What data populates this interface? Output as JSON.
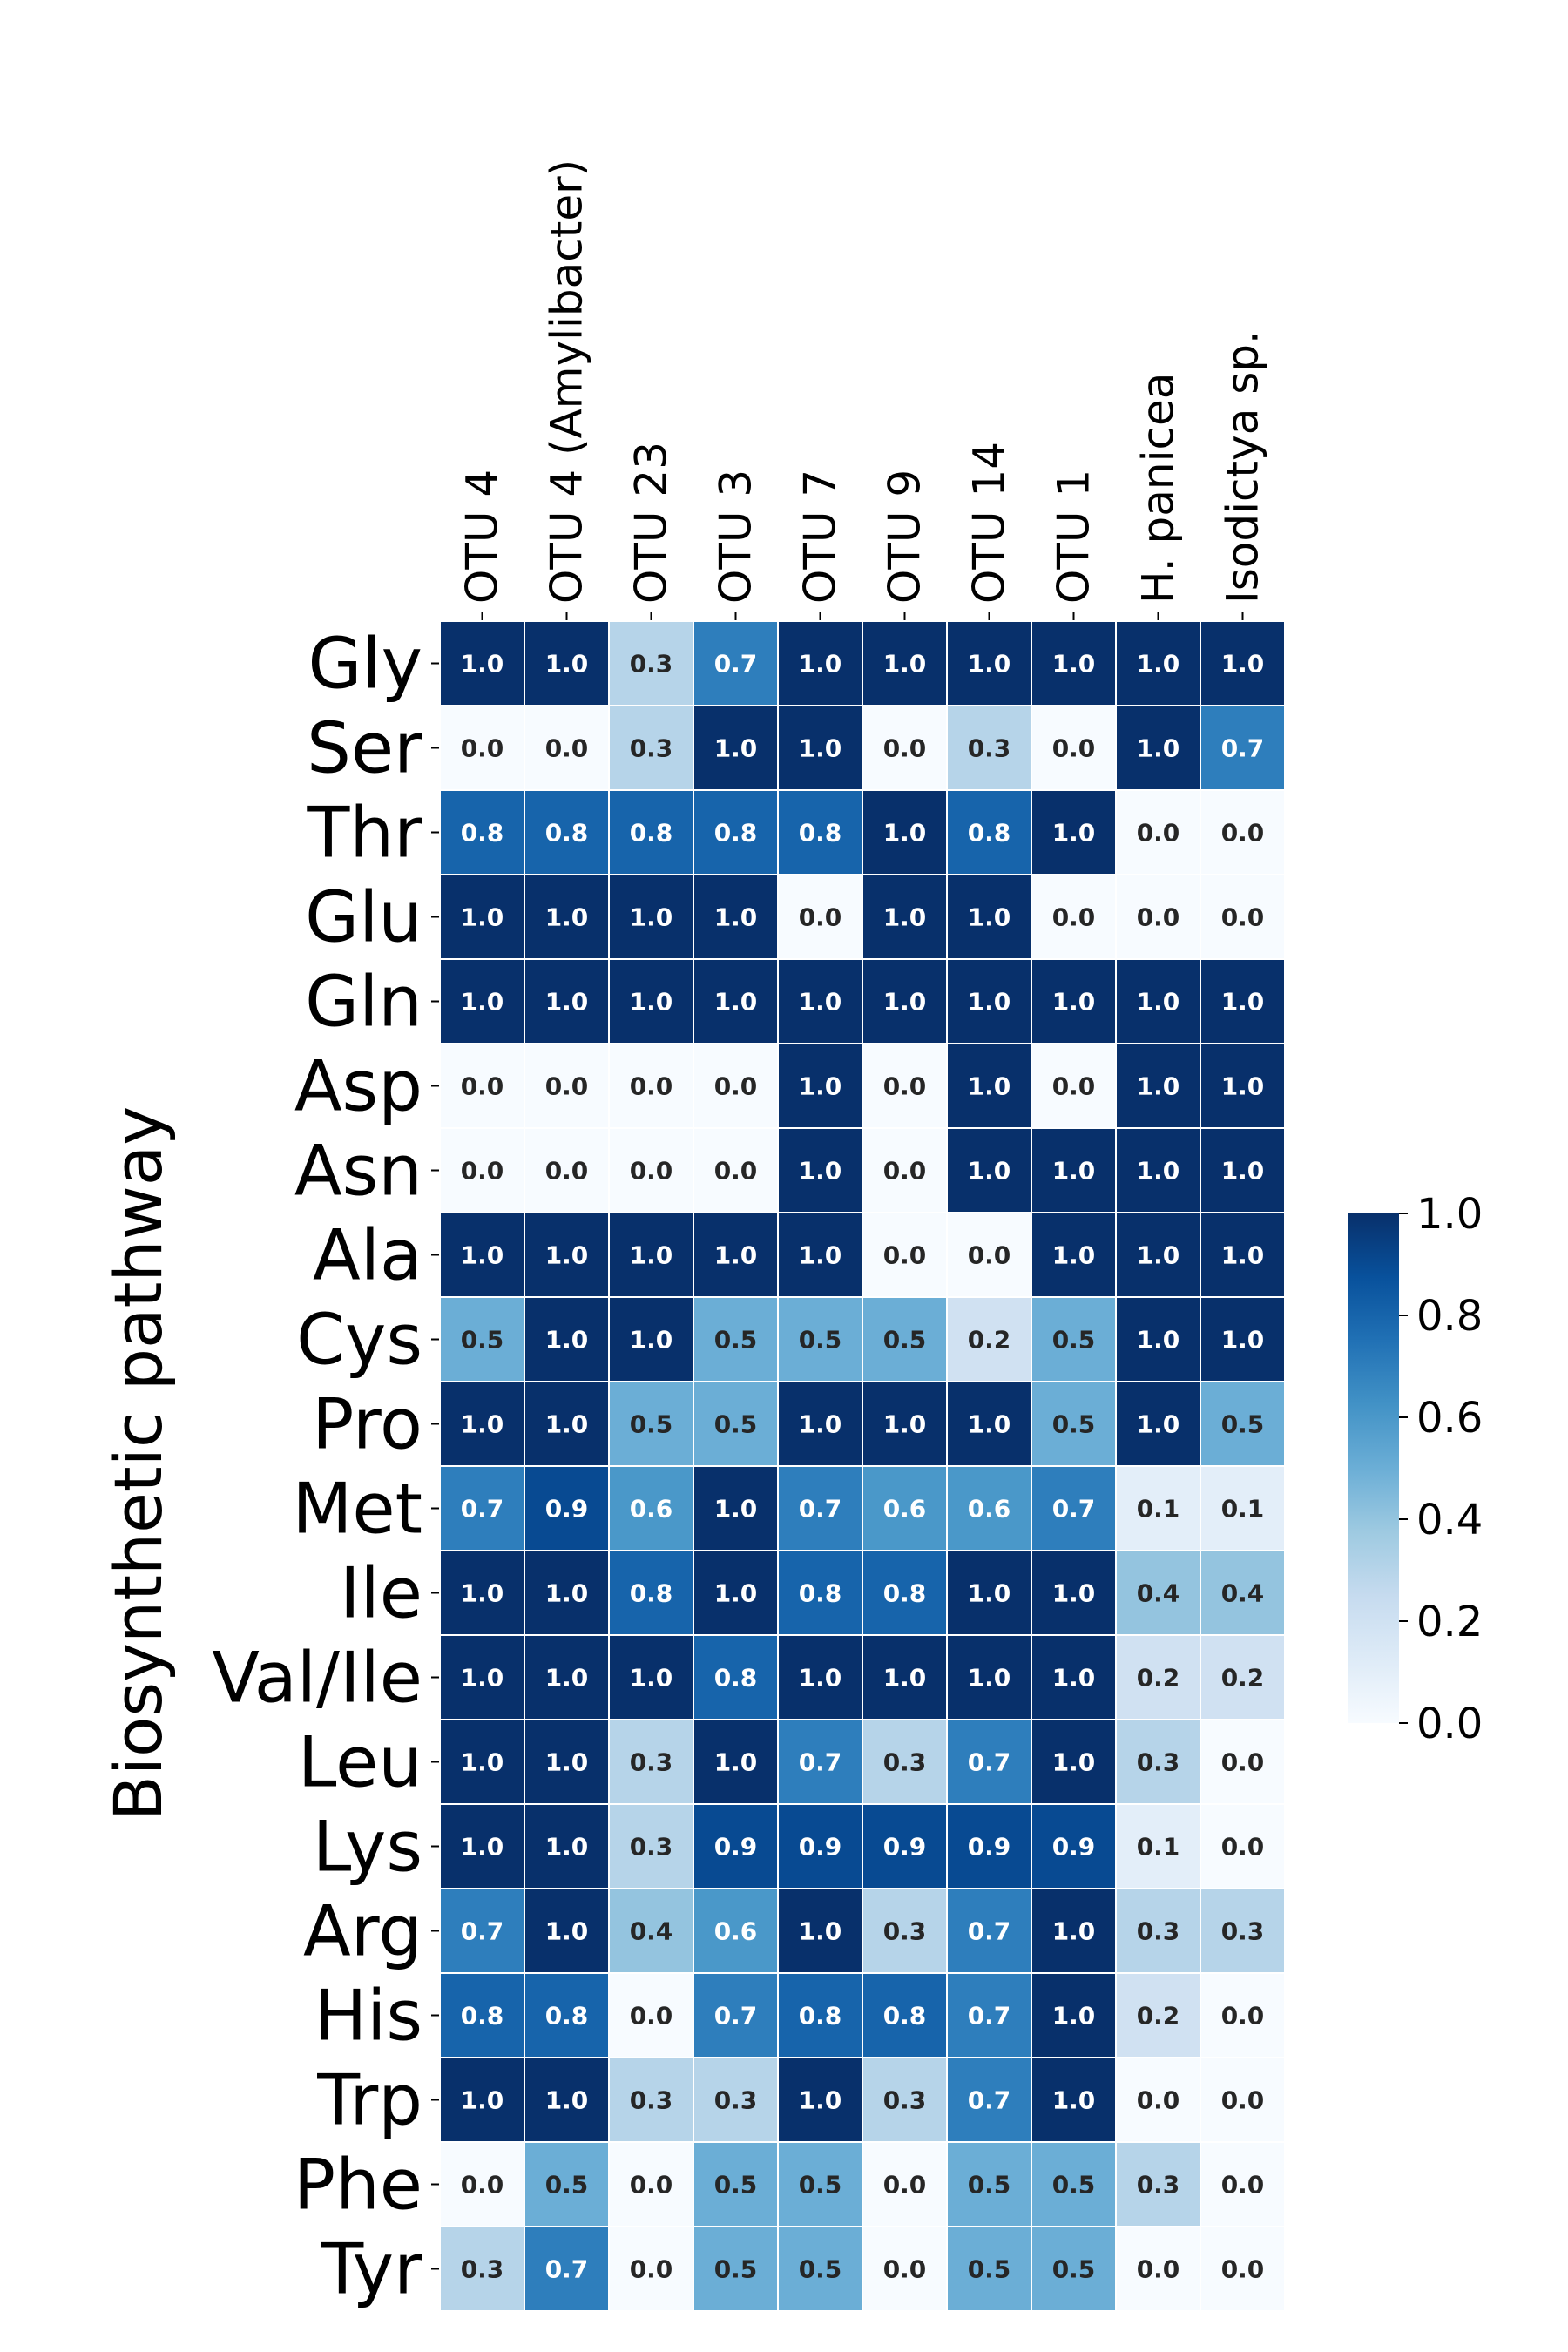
{
  "chart_data": {
    "type": "heatmap",
    "ylabel": "Biosynthetic pathway",
    "columns": [
      "OTU 4",
      "OTU 4 (Amylibacter)",
      "OTU 23",
      "OTU 3",
      "OTU 7",
      "OTU 9",
      "OTU 14",
      "OTU 1",
      "H. panicea",
      "Isodictya sp."
    ],
    "rows": [
      "Gly",
      "Ser",
      "Thr",
      "Glu",
      "Gln",
      "Asp",
      "Asn",
      "Ala",
      "Cys",
      "Pro",
      "Met",
      "Ile",
      "Val/Ile",
      "Leu",
      "Lys",
      "Arg",
      "His",
      "Trp",
      "Phe",
      "Tyr"
    ],
    "values": [
      [
        1.0,
        1.0,
        0.3,
        0.7,
        1.0,
        1.0,
        1.0,
        1.0,
        1.0,
        1.0
      ],
      [
        0.0,
        0.0,
        0.3,
        1.0,
        1.0,
        0.0,
        0.3,
        0.0,
        1.0,
        0.7
      ],
      [
        0.8,
        0.8,
        0.8,
        0.8,
        0.8,
        1.0,
        0.8,
        1.0,
        0.0,
        0.0
      ],
      [
        1.0,
        1.0,
        1.0,
        1.0,
        0.0,
        1.0,
        1.0,
        0.0,
        0.0,
        0.0
      ],
      [
        1.0,
        1.0,
        1.0,
        1.0,
        1.0,
        1.0,
        1.0,
        1.0,
        1.0,
        1.0
      ],
      [
        0.0,
        0.0,
        0.0,
        0.0,
        1.0,
        0.0,
        1.0,
        0.0,
        1.0,
        1.0
      ],
      [
        0.0,
        0.0,
        0.0,
        0.0,
        1.0,
        0.0,
        1.0,
        1.0,
        1.0,
        1.0
      ],
      [
        1.0,
        1.0,
        1.0,
        1.0,
        1.0,
        0.0,
        0.0,
        1.0,
        1.0,
        1.0
      ],
      [
        0.5,
        1.0,
        1.0,
        0.5,
        0.5,
        0.5,
        0.2,
        0.5,
        1.0,
        1.0
      ],
      [
        1.0,
        1.0,
        0.5,
        0.5,
        1.0,
        1.0,
        1.0,
        0.5,
        1.0,
        0.5
      ],
      [
        0.7,
        0.9,
        0.6,
        1.0,
        0.7,
        0.6,
        0.6,
        0.7,
        0.1,
        0.1
      ],
      [
        1.0,
        1.0,
        0.8,
        1.0,
        0.8,
        0.8,
        1.0,
        1.0,
        0.4,
        0.4
      ],
      [
        1.0,
        1.0,
        1.0,
        0.8,
        1.0,
        1.0,
        1.0,
        1.0,
        0.2,
        0.2
      ],
      [
        1.0,
        1.0,
        0.3,
        1.0,
        0.7,
        0.3,
        0.7,
        1.0,
        0.3,
        0.0
      ],
      [
        1.0,
        1.0,
        0.3,
        0.9,
        0.9,
        0.9,
        0.9,
        0.9,
        0.1,
        0.0
      ],
      [
        0.7,
        1.0,
        0.4,
        0.6,
        1.0,
        0.3,
        0.7,
        1.0,
        0.3,
        0.3
      ],
      [
        0.8,
        0.8,
        0.0,
        0.7,
        0.8,
        0.8,
        0.7,
        1.0,
        0.2,
        0.0
      ],
      [
        1.0,
        1.0,
        0.3,
        0.3,
        1.0,
        0.3,
        0.7,
        1.0,
        0.0,
        0.0
      ],
      [
        0.0,
        0.5,
        0.0,
        0.5,
        0.5,
        0.0,
        0.5,
        0.5,
        0.3,
        0.0
      ],
      [
        0.3,
        0.7,
        0.0,
        0.5,
        0.5,
        0.0,
        0.5,
        0.5,
        0.0,
        0.0
      ]
    ],
    "colorbar": {
      "range": [
        0.0,
        1.0
      ],
      "ticks": [
        "0.0",
        "0.2",
        "0.4",
        "0.6",
        "0.8",
        "1.0"
      ]
    },
    "colormap": [
      "#f7fbff",
      "#deebf7",
      "#c6dbef",
      "#9ecae1",
      "#6baed6",
      "#4292c6",
      "#2171b5",
      "#08519c",
      "#08306b"
    ],
    "column_label_position": "top",
    "legend_position": "right"
  }
}
